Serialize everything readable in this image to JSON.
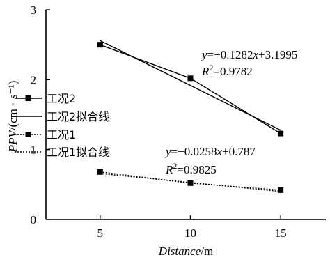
{
  "chart_data": {
    "type": "scatter",
    "xlabel": "Distance/m",
    "ylabel": "PPV/(cm · s⁻¹)",
    "xlim": [
      2,
      17.5
    ],
    "ylim": [
      0,
      3
    ],
    "x_ticks": [
      5,
      10,
      15
    ],
    "y_ticks": [
      0,
      1,
      2,
      3
    ],
    "grid": false,
    "legend_position": "left",
    "series": [
      {
        "name": "工况2",
        "style": "marker-line",
        "marker": "square",
        "dash": "solid",
        "x": [
          5,
          10,
          15
        ],
        "y": [
          2.5,
          2.02,
          1.23
        ]
      },
      {
        "name": "工况2拟合线",
        "style": "fit-line",
        "dash": "solid",
        "slope": -0.1282,
        "intercept": 3.1995,
        "x": [
          5,
          15
        ]
      },
      {
        "name": "工况1",
        "style": "marker-line",
        "marker": "square",
        "dash": "dotted",
        "x": [
          5,
          10,
          15
        ],
        "y": [
          0.68,
          0.52,
          0.42
        ]
      },
      {
        "name": "工况1拟合线",
        "style": "fit-line",
        "dash": "dotted",
        "slope": -0.0258,
        "intercept": 0.787,
        "x": [
          5,
          15
        ]
      }
    ],
    "annotations": [
      {
        "target": "工况2",
        "eq_prefix": "y",
        "eq_equals": "=−0.1282",
        "eq_x": "x",
        "eq_tail": "+3.1995",
        "r2_prefix": "R",
        "r2_sup": "2",
        "r2_value": "=0.9782"
      },
      {
        "target": "工况1",
        "eq_prefix": "y",
        "eq_equals": "=−0.0258",
        "eq_x": "x",
        "eq_tail": "+0.787",
        "r2_prefix": "R",
        "r2_sup": "2",
        "r2_value": "=0.9825"
      }
    ]
  }
}
